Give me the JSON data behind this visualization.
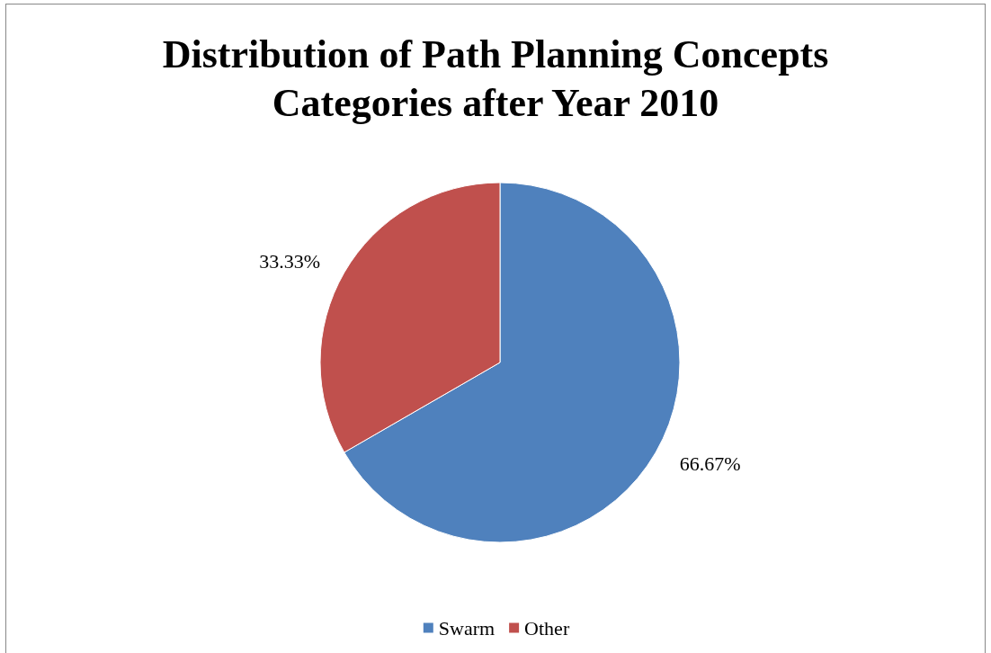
{
  "chart_data": {
    "type": "pie",
    "title": "Distribution of Path Planning Concepts\nCategories after Year 2010",
    "categories": [
      "Swarm",
      "Other"
    ],
    "values": [
      66.67,
      33.33
    ],
    "colors": [
      "#4f81bd",
      "#c0504d"
    ],
    "value_labels": [
      "66.67%",
      "33.33%"
    ],
    "legend": "bottom"
  }
}
